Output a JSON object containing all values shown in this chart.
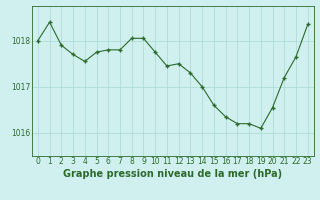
{
  "hours": [
    0,
    1,
    2,
    3,
    4,
    5,
    6,
    7,
    8,
    9,
    10,
    11,
    12,
    13,
    14,
    15,
    16,
    17,
    18,
    19,
    20,
    21,
    22,
    23
  ],
  "pressure": [
    1018.0,
    1018.4,
    1017.9,
    1017.7,
    1017.55,
    1017.75,
    1017.8,
    1017.8,
    1018.05,
    1018.05,
    1017.75,
    1017.45,
    1017.5,
    1017.3,
    1017.0,
    1016.6,
    1016.35,
    1016.2,
    1016.2,
    1016.1,
    1016.55,
    1017.2,
    1017.65,
    1018.35
  ],
  "line_color": "#2d6a2d",
  "marker_color": "#2d6a2d",
  "bg_color": "#cff0ee",
  "grid_color": "#aad8d4",
  "ylabel_ticks": [
    1016,
    1017,
    1018
  ],
  "ylim": [
    1015.5,
    1018.75
  ],
  "xlabel": "Graphe pression niveau de la mer (hPa)",
  "xlabel_color": "#2d6a2d",
  "xlabel_fontsize": 7,
  "tick_color": "#2d6a2d",
  "tick_fontsize": 5.5,
  "border_color": "#2d6a2d",
  "xlim_left": -0.5,
  "xlim_right": 23.5
}
